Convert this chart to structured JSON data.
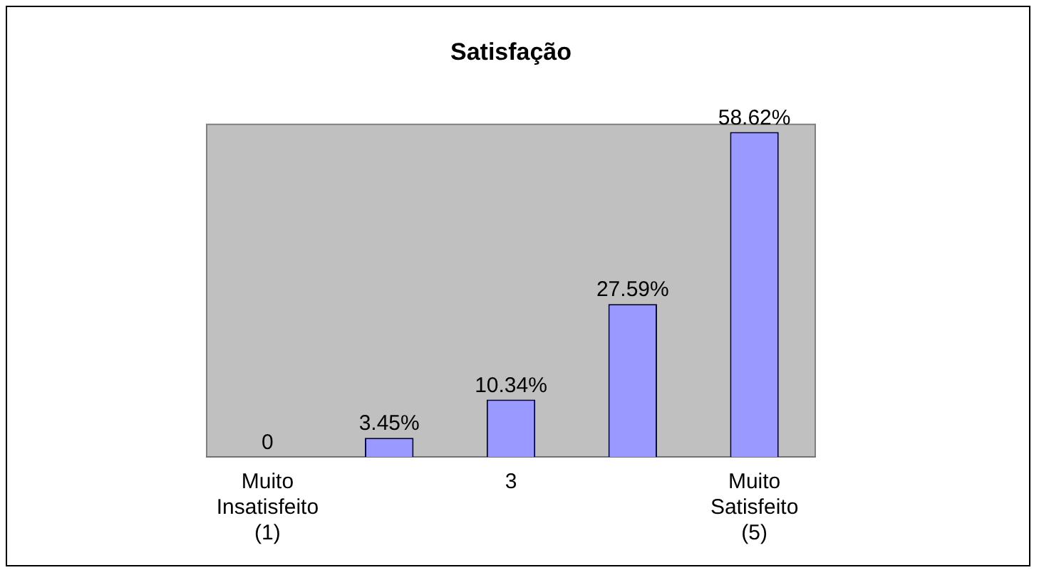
{
  "chart_data": {
    "type": "bar",
    "title": "Satisfação",
    "categories": [
      "Muito Insatisfeito (1)",
      null,
      "3",
      null,
      "Muito Satisfeito (5)"
    ],
    "values": [
      0,
      3.45,
      10.34,
      27.59,
      58.62
    ],
    "value_labels": [
      "0",
      "3.45%",
      "10.34%",
      "27.59%",
      "58.62%"
    ],
    "color": "#9999ff",
    "grid": false,
    "legend": false
  }
}
